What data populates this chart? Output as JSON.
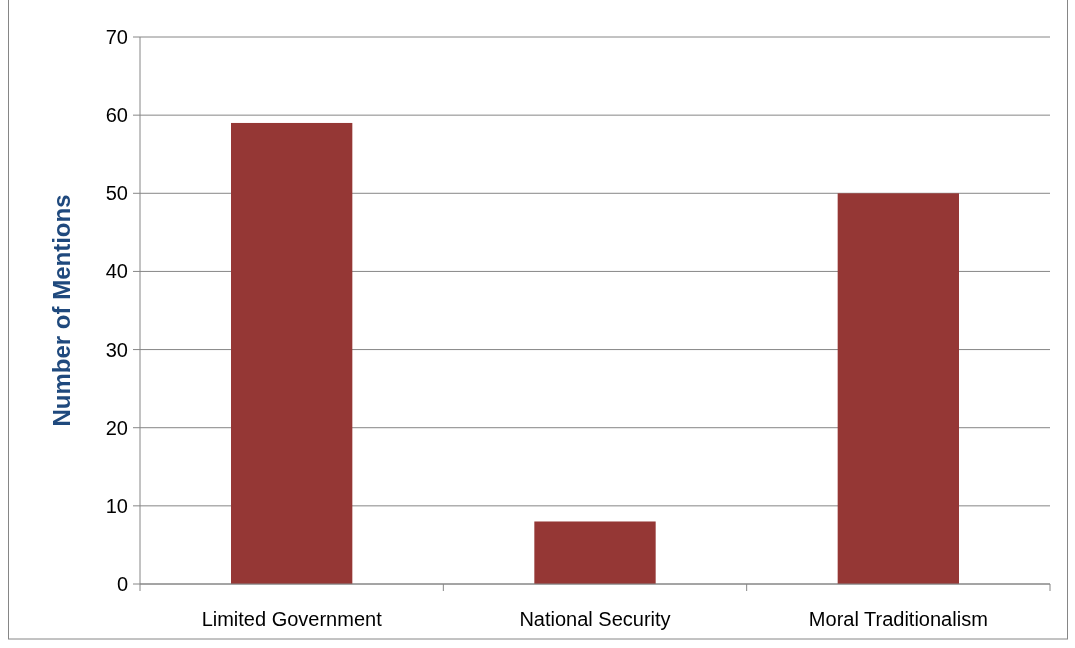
{
  "chart_data": {
    "type": "bar",
    "ylabel": "Number of Mentions",
    "categories": [
      "Limited Government",
      "National Security",
      "Moral Traditionalism"
    ],
    "values": [
      59,
      8,
      50
    ],
    "color": "#953735",
    "ylim": [
      0,
      70
    ],
    "yticks": [
      0,
      10,
      20,
      30,
      40,
      50,
      60,
      70
    ],
    "grid": "y"
  }
}
